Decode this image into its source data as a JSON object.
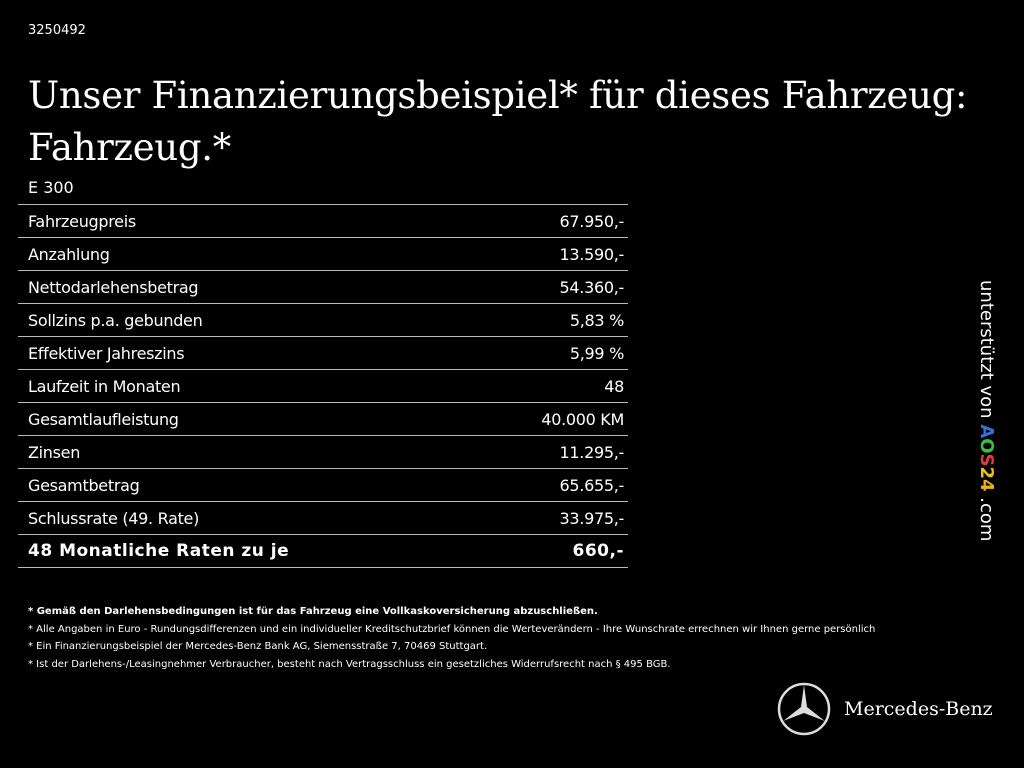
{
  "code": "3250492",
  "title_line1": "Unser Finanzierungsbeispiel* für dieses Fahrzeug:",
  "title_line2": "Fahrzeug.*",
  "model": "E 300",
  "rows": [
    {
      "label": "Fahrzeugpreis",
      "value": "67.950,-"
    },
    {
      "label": "Anzahlung",
      "value": "13.590,-"
    },
    {
      "label": "Nettodarlehensbetrag",
      "value": "54.360,-"
    },
    {
      "label": "Sollzins p.a. gebunden",
      "value": "5,83 %"
    },
    {
      "label": "Effektiver Jahreszins",
      "value": "5,99 %"
    },
    {
      "label": "Laufzeit in Monaten",
      "value": "48"
    },
    {
      "label": "Gesamtlaufleistung",
      "value": "40.000 KM"
    },
    {
      "label": "Zinsen",
      "value": "11.295,-"
    },
    {
      "label": "Gesamtbetrag",
      "value": "65.655,-"
    },
    {
      "label": "Schlussrate (49. Rate)",
      "value": "33.975,-"
    },
    {
      "label": "48 Monatliche Raten zu je",
      "value": "660,-"
    }
  ],
  "notes": [
    "* Gemäß den Darlehensbedingungen ist für das Fahrzeug eine Vollkaskoversicherung abzuschließen.",
    "* Alle Angaben in Euro - Rundungsdifferenzen und ein individueller Kreditschutzbrief können die Werteverändern - Ihre Wunschrate errechnen wir Ihnen gerne persönlich",
    "* Ein Finanzierungsbeispiel der Mercedes-Benz Bank AG, Siemensstraße 7, 70469 Stuttgart.",
    "* Ist der Darlehens-/Leasingnehmer Verbraucher, besteht nach Vertragsschluss ein gesetzliches Widerrufsrecht nach § 495 BGB."
  ],
  "side": {
    "prefix": "unterstützt von ",
    "logo": [
      "A",
      "O",
      "S",
      "2",
      "4"
    ],
    "logo_colors": [
      "#3b6fd6",
      "#3cbf4a",
      "#e03a3a",
      "#e8c020",
      "#e8b020"
    ],
    "suffix": " .com"
  },
  "brand": {
    "name": "Mercedes-Benz",
    "icon": "mercedes-star-icon"
  }
}
